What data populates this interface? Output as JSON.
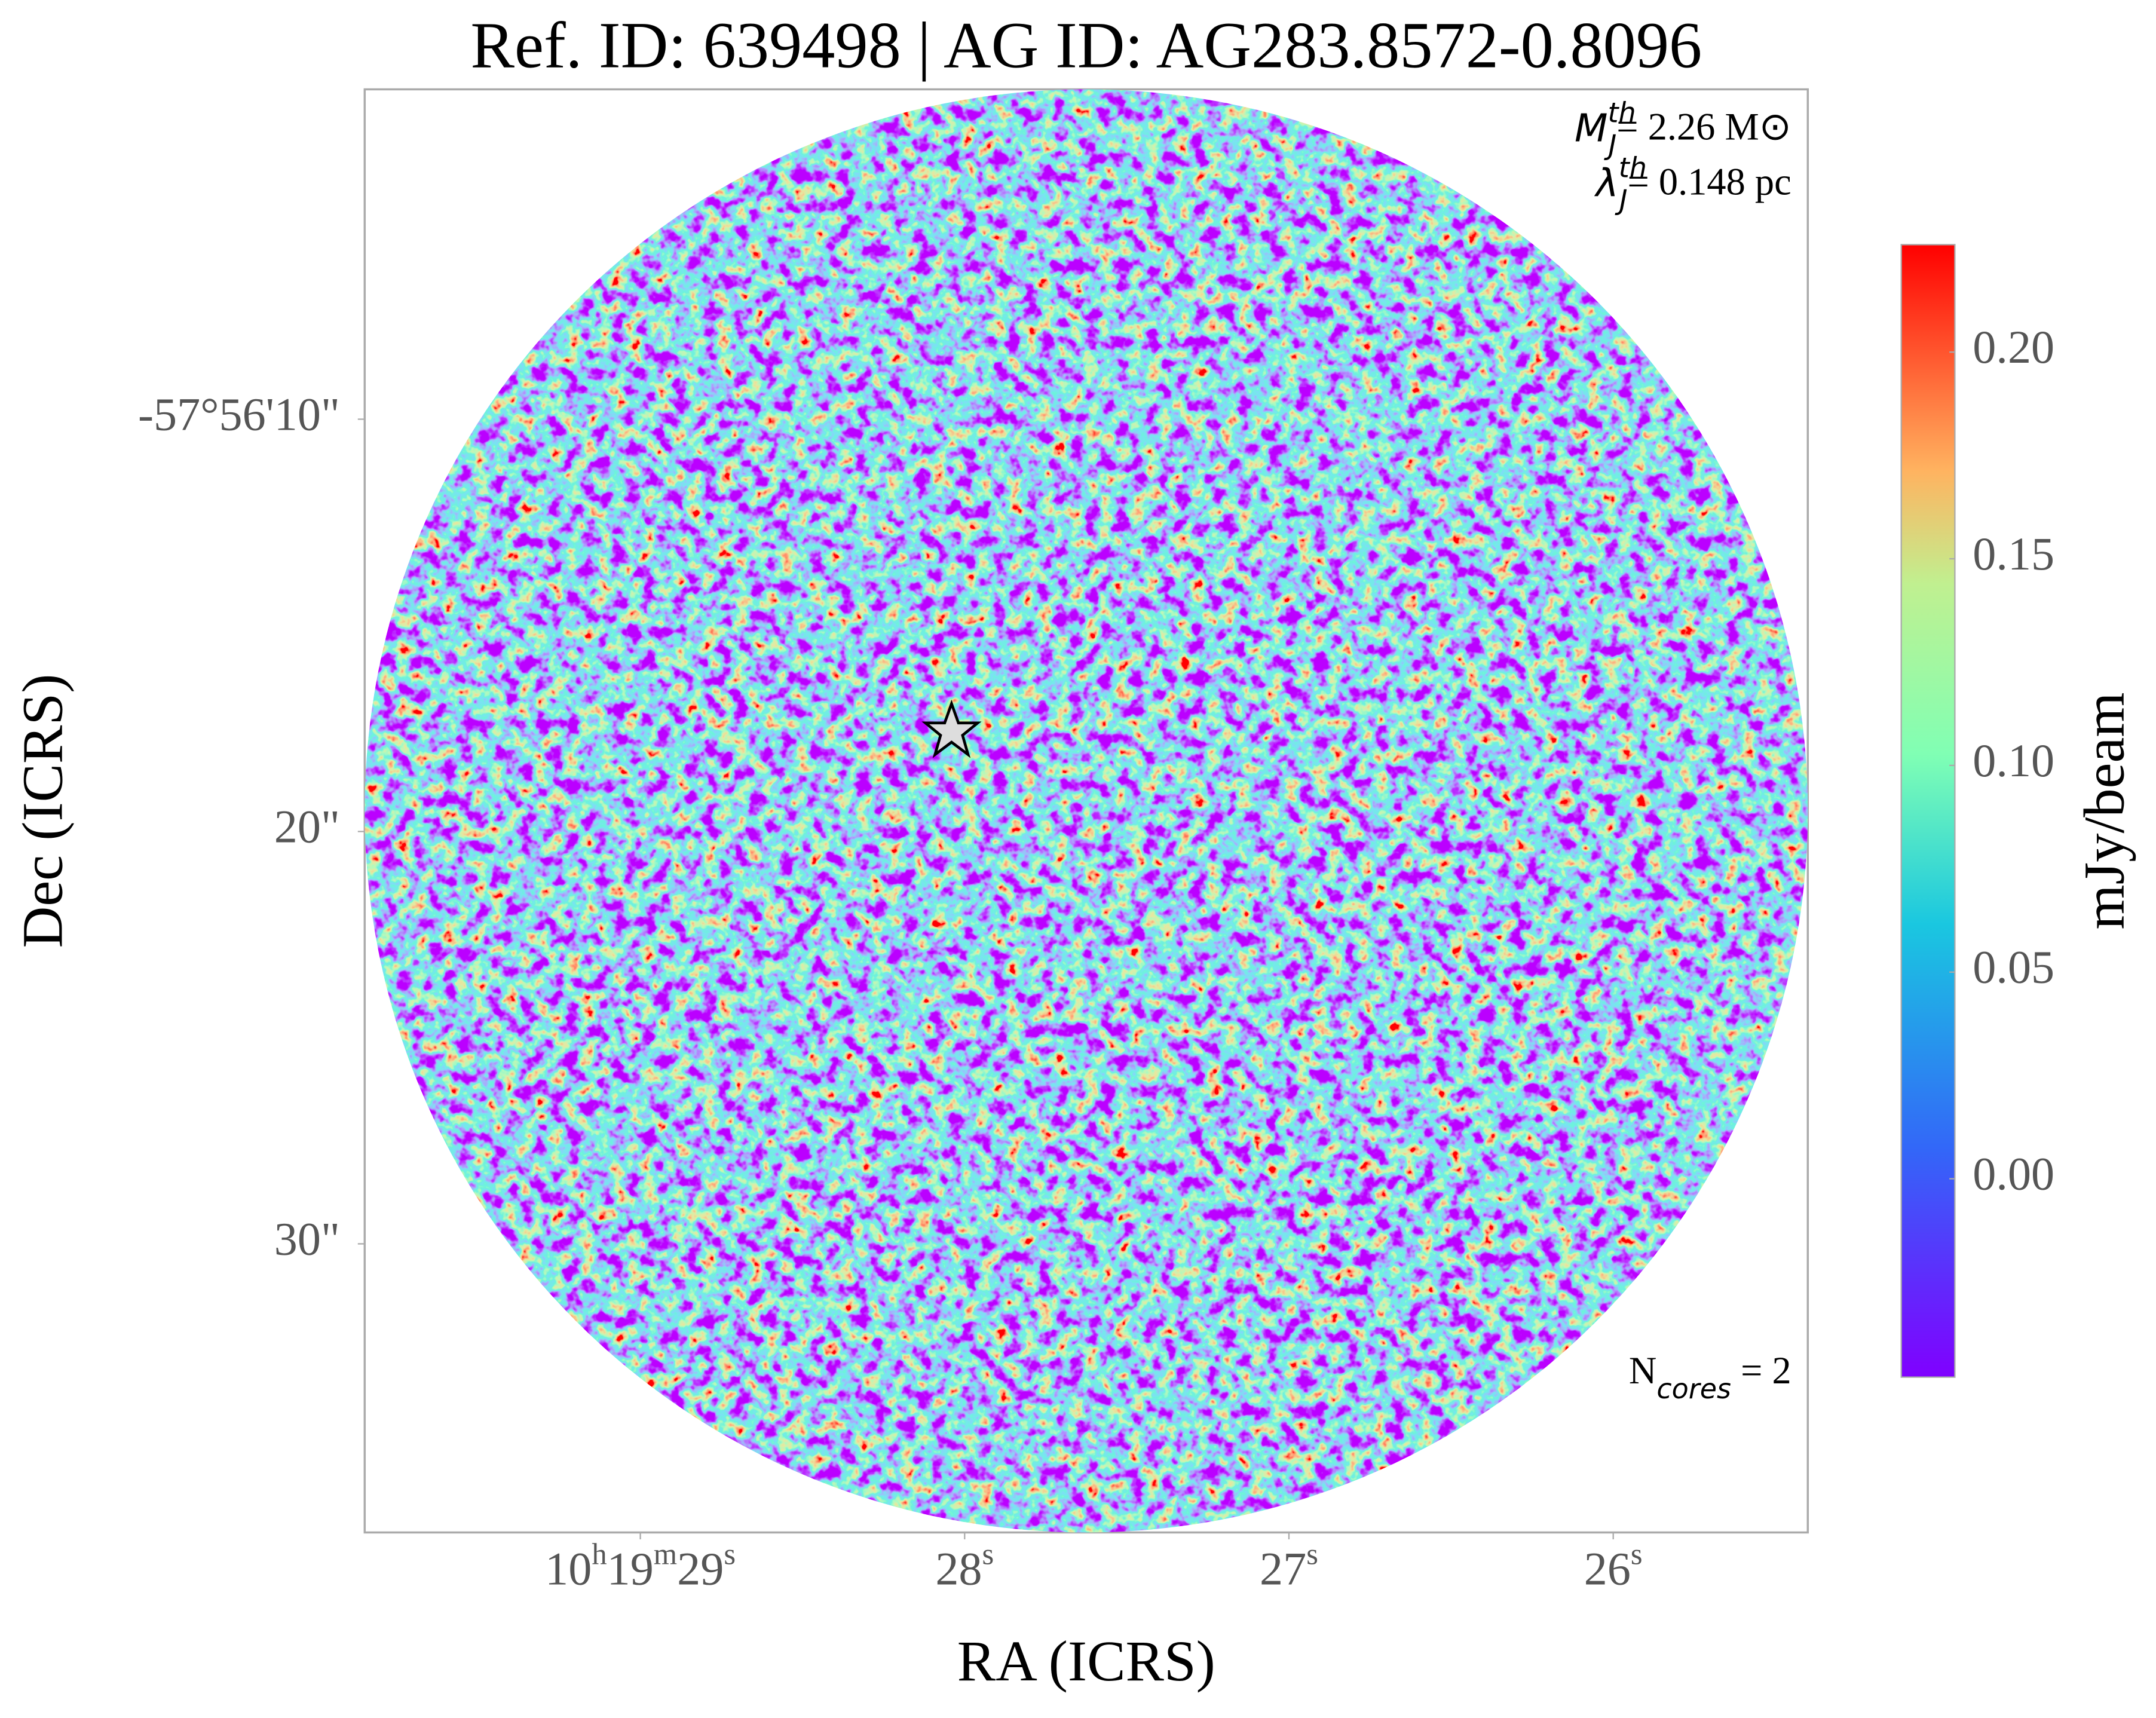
{
  "chart_data": {
    "type": "image",
    "title": "Ref. ID: 639498 | AG ID: AG283.8572-0.8096",
    "x_label": "RA (ICRS)",
    "y_label": "Dec (ICRS)",
    "xlim": [
      29.85,
      25.4
    ],
    "xticks": [
      {
        "value": 29,
        "label": [
          "10",
          "h",
          "19",
          "m",
          "29",
          "s"
        ]
      },
      {
        "value": 28,
        "label": [
          "28",
          "s"
        ]
      },
      {
        "value": 27,
        "label": [
          "27",
          "s"
        ]
      },
      {
        "value": 26,
        "label": [
          "26",
          "s"
        ]
      }
    ],
    "ylim": [
      2,
      37
    ],
    "yticks": [
      {
        "value": 10,
        "label": "-57°56'10\""
      },
      {
        "value": 20,
        "label": "20\""
      },
      {
        "value": 30,
        "label": "30\""
      }
    ],
    "colorbar": {
      "label": "mJy/beam",
      "lim": [
        -0.048,
        0.226
      ],
      "ticks": [
        {
          "value": 0,
          "label": "0.00"
        },
        {
          "value": 0.05,
          "label": "0.05"
        },
        {
          "value": 0.1,
          "label": "0.10"
        },
        {
          "value": 0.15,
          "label": "0.15"
        },
        {
          "value": 0.2,
          "label": "0.20"
        }
      ]
    },
    "annotations": [
      {
        "base": "M",
        "sup": "th",
        "sub": "J",
        "rest": "= 2.26 M⊙"
      },
      {
        "base": "λ",
        "sup": "th",
        "sub": "J",
        "rest": "= 0.148 pc"
      },
      {
        "base": "N",
        "sub": "cores",
        "rest": " = 2"
      }
    ]
  }
}
